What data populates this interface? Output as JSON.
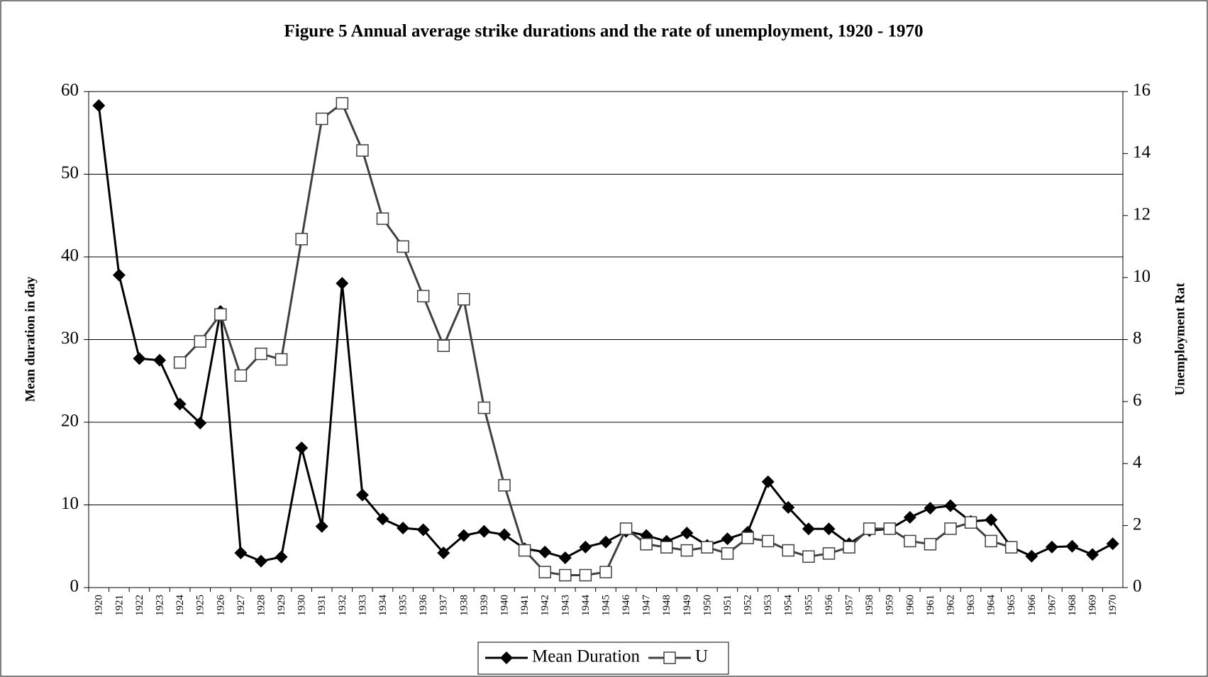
{
  "chart_data": {
    "type": "line",
    "title": "Figure 5  Annual average strike durations and the rate of unemployment, 1920 - 1970",
    "y_label": "Mean duration in day",
    "y2_label": "Unemployment Rat",
    "categories": [
      "1920",
      "1921",
      "1922",
      "1923",
      "1924",
      "1925",
      "1926",
      "1927",
      "1928",
      "1929",
      "1930",
      "1931",
      "1932",
      "1933",
      "1934",
      "1935",
      "1936",
      "1937",
      "1938",
      "1939",
      "1940",
      "1941",
      "1942",
      "1943",
      "1944",
      "1945",
      "1946",
      "1947",
      "1948",
      "1949",
      "1950",
      "1951",
      "1952",
      "1953",
      "1954",
      "1955",
      "1956",
      "1957",
      "1958",
      "1959",
      "1960",
      "1961",
      "1962",
      "1963",
      "1964",
      "1965",
      "1966",
      "1967",
      "1968",
      "1969",
      "1970"
    ],
    "series": [
      {
        "name": "Mean Duration",
        "color": "#000000",
        "marker": "diamond",
        "axis": "y",
        "values": [
          58.3,
          37.8,
          27.7,
          27.5,
          22.2,
          19.9,
          33.4,
          4.2,
          3.2,
          3.7,
          16.9,
          7.4,
          36.8,
          11.2,
          8.3,
          7.2,
          7.0,
          4.2,
          6.3,
          6.8,
          6.4,
          4.7,
          4.3,
          3.6,
          4.9,
          5.5,
          6.8,
          6.3,
          5.6,
          6.6,
          5.1,
          5.9,
          6.7,
          12.8,
          9.7,
          7.1,
          7.1,
          5.3,
          6.9,
          7.1,
          8.5,
          9.6,
          9.9,
          8.0,
          8.2,
          4.9,
          3.8,
          4.9,
          5.0,
          4.0,
          5.3
        ]
      },
      {
        "name": "U",
        "color": "#404040",
        "marker": "square",
        "axis": "y2",
        "values": [
          null,
          null,
          null,
          null,
          7.26,
          7.94,
          8.81,
          6.84,
          7.54,
          7.36,
          11.24,
          15.12,
          15.62,
          14.1,
          11.9,
          11.0,
          9.4,
          7.8,
          9.3,
          5.8,
          3.3,
          1.2,
          0.5,
          0.4,
          0.4,
          0.5,
          1.9,
          1.4,
          1.3,
          1.2,
          1.3,
          1.1,
          1.6,
          1.5,
          1.2,
          1.0,
          1.1,
          1.3,
          1.9,
          1.9,
          1.5,
          1.4,
          1.9,
          2.1,
          1.5,
          1.3,
          null,
          null,
          null,
          null,
          null
        ]
      }
    ],
    "ylim": [
      0,
      60
    ],
    "yticks": [
      0,
      10,
      20,
      30,
      40,
      50,
      60
    ],
    "y2lim": [
      0,
      16
    ],
    "y2ticks": [
      0,
      2,
      4,
      6,
      8,
      10,
      12,
      14,
      16
    ],
    "grid": true,
    "legend": "bottom"
  }
}
